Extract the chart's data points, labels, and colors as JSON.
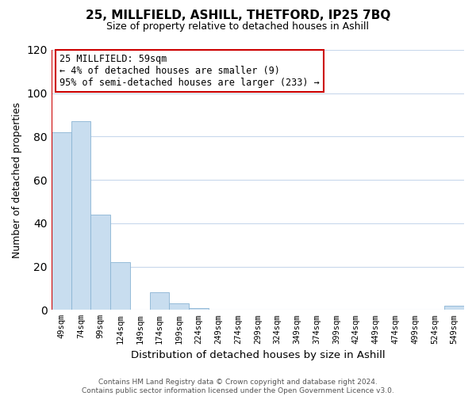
{
  "title": "25, MILLFIELD, ASHILL, THETFORD, IP25 7BQ",
  "subtitle": "Size of property relative to detached houses in Ashill",
  "xlabel": "Distribution of detached houses by size in Ashill",
  "ylabel": "Number of detached properties",
  "categories": [
    "49sqm",
    "74sqm",
    "99sqm",
    "124sqm",
    "149sqm",
    "174sqm",
    "199sqm",
    "224sqm",
    "249sqm",
    "274sqm",
    "299sqm",
    "324sqm",
    "349sqm",
    "374sqm",
    "399sqm",
    "424sqm",
    "449sqm",
    "474sqm",
    "499sqm",
    "524sqm",
    "549sqm"
  ],
  "values": [
    82,
    87,
    44,
    22,
    0,
    8,
    3,
    1,
    0,
    0,
    0,
    0,
    0,
    0,
    0,
    0,
    0,
    0,
    0,
    0,
    2
  ],
  "bar_color": "#c8ddef",
  "bar_edge_color": "#8ab4d4",
  "ylim": [
    0,
    120
  ],
  "yticks": [
    0,
    20,
    40,
    60,
    80,
    100,
    120
  ],
  "annotation_title": "25 MILLFIELD: 59sqm",
  "annotation_line1": "← 4% of detached houses are smaller (9)",
  "annotation_line2": "95% of semi-detached houses are larger (233) →",
  "annotation_box_color": "#ffffff",
  "annotation_box_edge_color": "#cc0000",
  "red_line_color": "#cc0000",
  "footer_line1": "Contains HM Land Registry data © Crown copyright and database right 2024.",
  "footer_line2": "Contains public sector information licensed under the Open Government Licence v3.0.",
  "background_color": "#ffffff",
  "grid_color": "#c8d8ec"
}
